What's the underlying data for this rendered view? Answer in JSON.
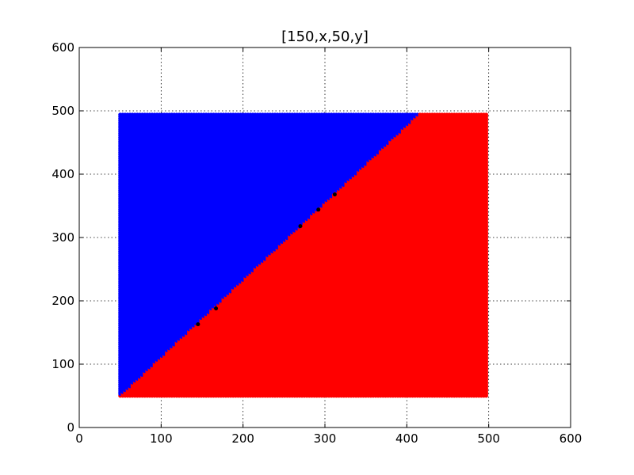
{
  "chart_data": {
    "type": "scatter",
    "title": "[150,x,50,y]",
    "xlabel": "",
    "ylabel": "",
    "xlim": [
      0,
      600
    ],
    "ylim": [
      0,
      600
    ],
    "xticks": [
      "0",
      "100",
      "200",
      "300",
      "400",
      "500",
      "600"
    ],
    "yticks": [
      "0",
      "100",
      "200",
      "300",
      "400",
      "500",
      "600"
    ],
    "grid": true,
    "legend": "none",
    "grid_region": {
      "x_min": 50,
      "x_max": 497,
      "y_min": 50,
      "y_max": 496,
      "step": 3
    },
    "boundary": {
      "from": [
        50,
        50
      ],
      "to": [
        416,
        496
      ]
    },
    "series": [
      {
        "class": "upper-left",
        "color": "#0000ff"
      },
      {
        "class": "lower-right",
        "color": "#ff0000"
      }
    ],
    "highlight_points": [
      [
        145,
        163
      ],
      [
        167,
        188
      ],
      [
        270,
        318
      ],
      [
        292,
        344
      ],
      [
        312,
        368
      ]
    ],
    "highlight_color": "#000000"
  }
}
